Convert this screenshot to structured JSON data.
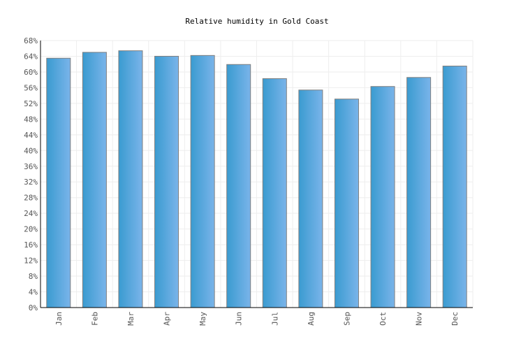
{
  "chart_data": {
    "type": "bar",
    "title": "Relative humidity in Gold Coast",
    "xlabel": "",
    "ylabel": "",
    "categories": [
      "Jan",
      "Feb",
      "Mar",
      "Apr",
      "May",
      "Jun",
      "Jul",
      "Aug",
      "Sep",
      "Oct",
      "Nov",
      "Dec"
    ],
    "values": [
      63.5,
      65.0,
      65.4,
      64.0,
      64.2,
      61.9,
      58.3,
      55.4,
      53.1,
      56.3,
      58.6,
      61.5
    ],
    "ylim": [
      0,
      68
    ],
    "yticks": [
      "0%",
      "4%",
      "8%",
      "12%",
      "16%",
      "20%",
      "24%",
      "28%",
      "32%",
      "36%",
      "40%",
      "44%",
      "48%",
      "52%",
      "56%",
      "60%",
      "64%",
      "68%"
    ],
    "grid": true,
    "legend": "none",
    "colors": {
      "bar_start": "#3a9bd0",
      "bar_end": "#7ab4ea",
      "bar_border": "#7f7f7f",
      "grid": "#eeeeee"
    }
  }
}
